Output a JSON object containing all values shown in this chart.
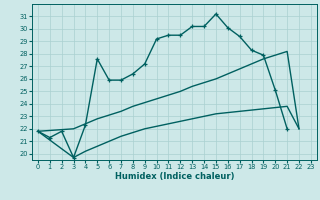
{
  "xlabel": "Humidex (Indice chaleur)",
  "background_color": "#cde8e8",
  "grid_color": "#aad0d0",
  "line_color": "#006060",
  "x_values": [
    0,
    1,
    2,
    3,
    4,
    5,
    6,
    7,
    8,
    9,
    10,
    11,
    12,
    13,
    14,
    15,
    16,
    17,
    18,
    19,
    20,
    21,
    22,
    23
  ],
  "curve1": [
    21.8,
    21.3,
    21.8,
    19.7,
    22.3,
    27.6,
    25.9,
    25.9,
    26.4,
    27.2,
    29.2,
    29.5,
    29.5,
    30.2,
    30.2,
    31.2,
    30.1,
    29.4,
    28.3,
    27.9,
    25.1,
    22.0,
    null,
    null
  ],
  "curve2": [
    21.8,
    null,
    null,
    22.0,
    22.4,
    22.8,
    23.1,
    23.4,
    23.8,
    24.1,
    24.4,
    24.7,
    25.0,
    25.4,
    25.7,
    26.0,
    26.4,
    26.8,
    27.2,
    27.6,
    27.9,
    28.2,
    22.0,
    null
  ],
  "curve3": [
    21.8,
    null,
    null,
    19.7,
    20.2,
    20.6,
    21.0,
    21.4,
    21.7,
    22.0,
    22.2,
    22.4,
    22.6,
    22.8,
    23.0,
    23.2,
    23.3,
    23.4,
    23.5,
    23.6,
    23.7,
    23.8,
    22.0,
    null
  ],
  "ylim": [
    19.5,
    32.0
  ],
  "xlim": [
    -0.5,
    23.5
  ],
  "yticks": [
    20,
    21,
    22,
    23,
    24,
    25,
    26,
    27,
    28,
    29,
    30,
    31
  ],
  "xticks": [
    0,
    1,
    2,
    3,
    4,
    5,
    6,
    7,
    8,
    9,
    10,
    11,
    12,
    13,
    14,
    15,
    16,
    17,
    18,
    19,
    20,
    21,
    22,
    23
  ]
}
